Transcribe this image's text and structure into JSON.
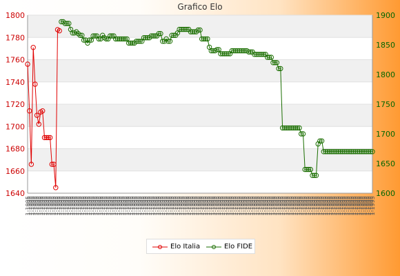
{
  "chart_data": {
    "type": "line",
    "title": "Grafico Elo",
    "xlabel": "",
    "ylabel_left": "",
    "ylabel_right": "",
    "left_axis": {
      "min": 1640,
      "max": 1800,
      "ticks": [
        1640,
        1660,
        1680,
        1700,
        1720,
        1740,
        1760,
        1780,
        1800
      ],
      "color": "#cc0000"
    },
    "right_axis": {
      "min": 1600,
      "max": 1900,
      "ticks": [
        1600,
        1650,
        1700,
        1750,
        1800,
        1850,
        1900
      ],
      "color": "#006600"
    },
    "grid": "horizontal bands",
    "legend_position": "bottom",
    "x_tick_labels_note": "",
    "x_first_label": "1-1995",
    "series": [
      {
        "name": "Elo Italia",
        "axis": "left",
        "color": "#e00000",
        "values": [
          1756,
          1714,
          1666,
          1771,
          1738,
          1710,
          1702,
          1713,
          1714,
          1690,
          1690,
          1690,
          1690,
          1666,
          1666,
          1645,
          1787,
          1786
        ]
      },
      {
        "name": "Elo FIDE",
        "axis": "right",
        "color": "#1a6e00",
        "values": [
          1889,
          1889,
          1886,
          1886,
          1886,
          1876,
          1870,
          1870,
          1872,
          1869,
          1866,
          1866,
          1858,
          1858,
          1853,
          1858,
          1858,
          1865,
          1865,
          1865,
          1860,
          1860,
          1866,
          1862,
          1860,
          1860,
          1865,
          1865,
          1865,
          1860,
          1860,
          1860,
          1860,
          1860,
          1860,
          1860,
          1853,
          1853,
          1853,
          1853,
          1856,
          1856,
          1856,
          1856,
          1862,
          1862,
          1862,
          1862,
          1865,
          1865,
          1865,
          1865,
          1869,
          1869,
          1856,
          1856,
          1860,
          1856,
          1856,
          1866,
          1866,
          1866,
          1870,
          1876,
          1876,
          1876,
          1876,
          1876,
          1876,
          1872,
          1872,
          1872,
          1872,
          1875,
          1875,
          1860,
          1860,
          1860,
          1860,
          1846,
          1840,
          1840,
          1840,
          1842,
          1842,
          1835,
          1835,
          1835,
          1835,
          1835,
          1835,
          1840,
          1840,
          1840,
          1840,
          1840,
          1840,
          1840,
          1840,
          1840,
          1838,
          1838,
          1838,
          1834,
          1834,
          1834,
          1834,
          1834,
          1834,
          1834,
          1829,
          1829,
          1829,
          1820,
          1820,
          1820,
          1810,
          1810,
          1710,
          1710,
          1710,
          1710,
          1710,
          1710,
          1710,
          1710,
          1710,
          1710,
          1700,
          1700,
          1640,
          1640,
          1640,
          1640,
          1630,
          1630,
          1630,
          1683,
          1688,
          1688,
          1670,
          1670,
          1670,
          1670,
          1670,
          1670,
          1670,
          1670,
          1670,
          1670,
          1670,
          1670,
          1670,
          1670,
          1670,
          1670,
          1670,
          1670,
          1670,
          1670,
          1670,
          1670,
          1670,
          1670,
          1670,
          1670,
          1670
        ]
      }
    ]
  }
}
